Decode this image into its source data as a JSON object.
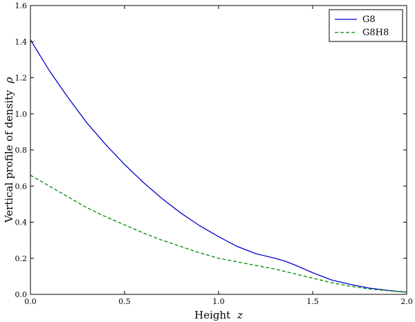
{
  "chart_data": {
    "type": "line",
    "xlabel": "Height",
    "xlabel_var": "z",
    "ylabel": "Vertical profile of density",
    "ylabel_var": "ρ",
    "xlim": [
      0.0,
      2.0
    ],
    "ylim": [
      0.0,
      1.6
    ],
    "xticks": [
      0.0,
      0.5,
      1.0,
      1.5,
      2.0
    ],
    "xtick_labels": [
      "0.0",
      "0.5",
      "1.0",
      "1.5",
      "2.0"
    ],
    "yticks": [
      0.0,
      0.2,
      0.4,
      0.6,
      0.8,
      1.0,
      1.2,
      1.4,
      1.6
    ],
    "ytick_labels": [
      "0.0",
      "0.2",
      "0.4",
      "0.6",
      "0.8",
      "1.0",
      "1.2",
      "1.4",
      "1.6"
    ],
    "grid": false,
    "legend_position": "top-right",
    "series": [
      {
        "name": "G8",
        "color": "#0000cc",
        "dash": "solid",
        "x": [
          0.0,
          0.1,
          0.2,
          0.3,
          0.4,
          0.5,
          0.6,
          0.7,
          0.8,
          0.9,
          1.0,
          1.1,
          1.2,
          1.3,
          1.35,
          1.4,
          1.5,
          1.6,
          1.7,
          1.8,
          1.9,
          2.0
        ],
        "y": [
          1.41,
          1.24,
          1.09,
          0.95,
          0.83,
          0.72,
          0.62,
          0.53,
          0.45,
          0.38,
          0.32,
          0.265,
          0.225,
          0.2,
          0.185,
          0.165,
          0.12,
          0.08,
          0.055,
          0.035,
          0.022,
          0.012
        ]
      },
      {
        "name": "G8H8",
        "color": "#008800",
        "dash": "dashed",
        "x": [
          0.0,
          0.1,
          0.2,
          0.3,
          0.4,
          0.5,
          0.6,
          0.7,
          0.8,
          0.9,
          1.0,
          1.1,
          1.2,
          1.3,
          1.4,
          1.5,
          1.6,
          1.7,
          1.8,
          1.9,
          2.0
        ],
        "y": [
          0.66,
          0.6,
          0.54,
          0.48,
          0.43,
          0.385,
          0.34,
          0.3,
          0.265,
          0.23,
          0.2,
          0.18,
          0.16,
          0.14,
          0.115,
          0.09,
          0.065,
          0.045,
          0.03,
          0.02,
          0.012
        ]
      }
    ]
  }
}
